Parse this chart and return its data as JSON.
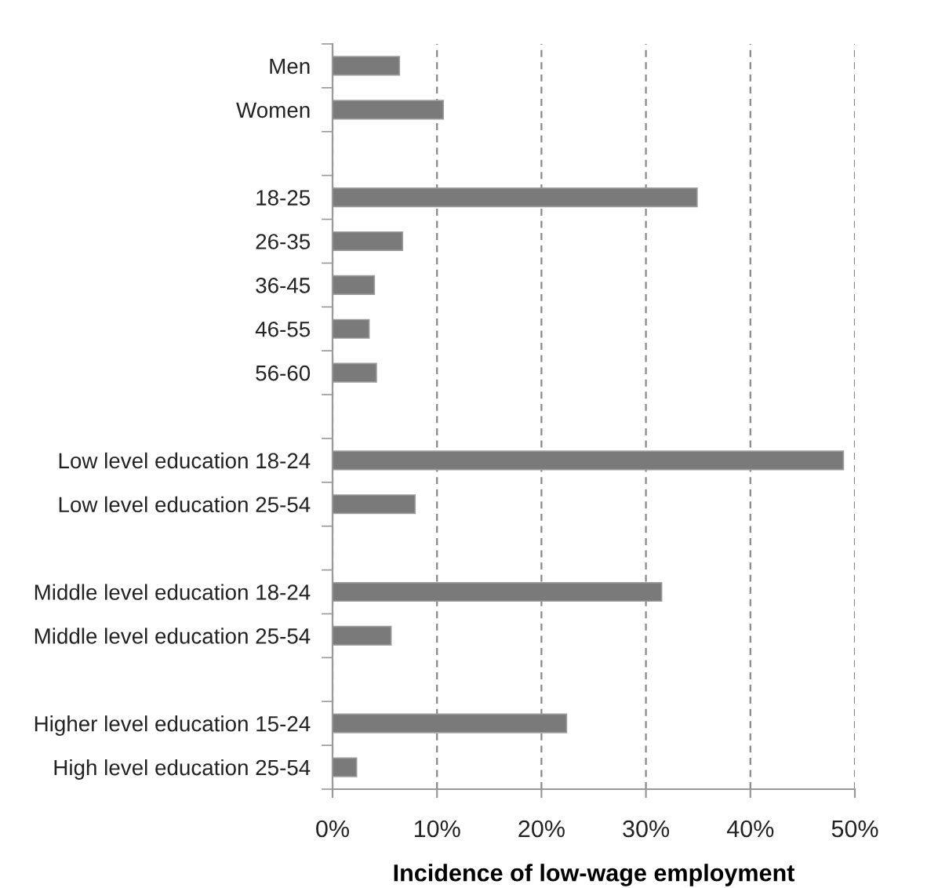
{
  "chart_data": {
    "type": "bar",
    "orientation": "horizontal",
    "xlabel": "Incidence of low-wage employment",
    "categories": [
      "Men",
      "Women",
      null,
      "18-25",
      "26-35",
      "36-45",
      "46-55",
      "56-60",
      null,
      "Low level education 18-24",
      "Low level education 25-54",
      null,
      "Middle level education 18-24",
      "Middle level education 25-54",
      null,
      "Higher level education 15-24",
      "High level education 25-54"
    ],
    "values": [
      6.4,
      10.6,
      null,
      34.9,
      6.7,
      4.0,
      3.5,
      4.2,
      null,
      48.9,
      7.9,
      null,
      31.5,
      5.6,
      null,
      22.4,
      2.3
    ],
    "color": "#7a7a7a",
    "xlim": [
      0,
      50
    ],
    "xticks": [
      {
        "value": 0,
        "label": "0%"
      },
      {
        "value": 10,
        "label": "10%"
      },
      {
        "value": 20,
        "label": "20%"
      },
      {
        "value": 30,
        "label": "30%"
      },
      {
        "value": 40,
        "label": "40%"
      },
      {
        "value": 50,
        "label": "50%"
      }
    ],
    "grid": "x",
    "legend": false
  }
}
